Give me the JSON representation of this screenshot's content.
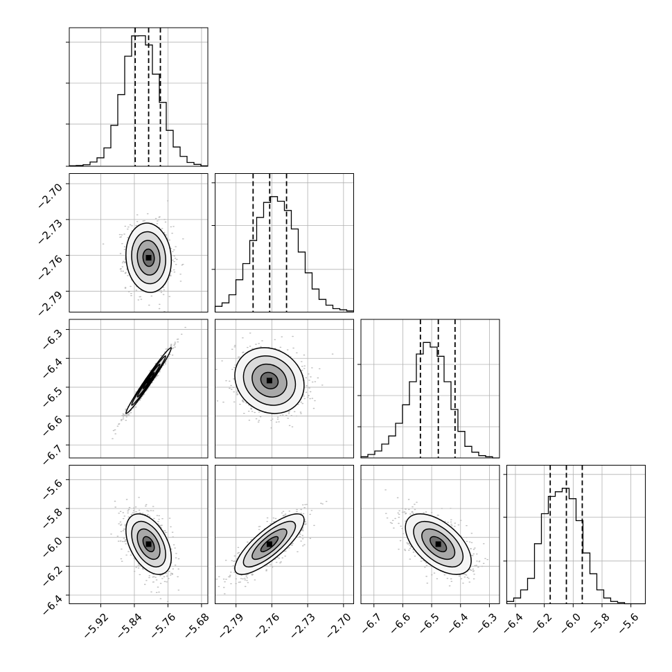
{
  "chart_data": {
    "type": "corner",
    "grid": true,
    "quantile_style": "dashed",
    "parameters": [
      {
        "range": [
          -5.995,
          -5.665
        ],
        "ticks": [
          "−5.92",
          "−5.84",
          "−5.76",
          "−5.68"
        ],
        "tick_values": [
          -5.92,
          -5.84,
          -5.76,
          -5.68
        ],
        "quantiles": [
          -5.838,
          -5.806,
          -5.778
        ],
        "histogram": {
          "bin_start": -5.995,
          "bin_width": 0.0165,
          "counts": [
            0.4,
            0.6,
            1.2,
            3.2,
            6.4,
            13.9,
            31.0,
            54.3,
            83.4,
            98.8,
            98.9,
            91.9,
            69.8,
            48.4,
            27.2,
            14.6,
            7.5,
            2.9,
            1.4,
            0.3
          ]
        },
        "hist_grid": [
          0,
          32,
          63,
          94
        ]
      },
      {
        "range": [
          -2.8075,
          -2.6915
        ],
        "ticks": [
          "−2.79",
          "−2.76",
          "−2.73",
          "−2.70"
        ],
        "tick_values": [
          -2.79,
          -2.76,
          -2.73,
          -2.7
        ],
        "quantiles": [
          -2.7757,
          -2.7618,
          -2.7477
        ],
        "histogram": {
          "bin_start": -2.8075,
          "bin_width": 0.0058,
          "counts": [
            0.05,
            0.08,
            0.15,
            0.28,
            0.42,
            0.62,
            0.82,
            0.95,
            1.0,
            0.96,
            0.88,
            0.72,
            0.52,
            0.34,
            0.2,
            0.11,
            0.06,
            0.03,
            0.02,
            0.01
          ]
        },
        "hist_grid": [
          0.37,
          0.75,
          1.12
        ]
      },
      {
        "range": [
          -6.745,
          -6.265
        ],
        "ticks": [
          "−6.7",
          "−6.6",
          "−6.5",
          "−6.4",
          "−6.3"
        ],
        "tick_values": [
          -6.7,
          -6.6,
          -6.5,
          -6.4,
          -6.3
        ],
        "quantiles": [
          -6.539,
          -6.477,
          -6.419
        ],
        "histogram": {
          "bin_start": -6.745,
          "bin_width": 0.024,
          "counts": [
            0.01,
            0.03,
            0.06,
            0.12,
            0.19,
            0.3,
            0.46,
            0.66,
            0.9,
            1.0,
            0.96,
            0.88,
            0.66,
            0.42,
            0.23,
            0.1,
            0.05,
            0.02,
            0.01,
            0.0
          ]
        },
        "hist_grid": [
          0.27,
          0.54,
          0.81
        ]
      },
      {
        "range": [
          -6.46,
          -5.5
        ],
        "ticks": [
          "−6.4",
          "−6.2",
          "−6.0",
          "−5.8",
          "−5.6"
        ],
        "tick_values": [
          -6.4,
          -6.2,
          -6.0,
          -5.8,
          -5.6
        ],
        "quantiles": [
          -6.159,
          -6.047,
          -5.937
        ],
        "histogram": {
          "bin_start": -6.46,
          "bin_width": 0.048,
          "counts": [
            0.02,
            0.05,
            0.12,
            0.22,
            0.52,
            0.78,
            0.93,
            0.97,
            1.0,
            0.91,
            0.72,
            0.44,
            0.26,
            0.12,
            0.05,
            0.02,
            0.01,
            0.0,
            0.0,
            0.0
          ]
        },
        "hist_grid": [
          0.37,
          0.75,
          1.12
        ]
      }
    ],
    "pairs": [
      {
        "x": 0,
        "y": 1,
        "mean": [
          -5.806,
          -2.762
        ],
        "sd": [
          0.027,
          0.0145
        ],
        "correlation": -0.08
      },
      {
        "x": 0,
        "y": 2,
        "mean": [
          -5.806,
          -6.477
        ],
        "sd": [
          0.027,
          0.057
        ],
        "correlation": 0.985
      },
      {
        "x": 1,
        "y": 2,
        "mean": [
          -2.762,
          -6.477
        ],
        "sd": [
          0.0145,
          0.057
        ],
        "correlation": -0.15
      },
      {
        "x": 0,
        "y": 3,
        "mean": [
          -5.806,
          -6.047
        ],
        "sd": [
          0.027,
          0.105
        ],
        "correlation": -0.45
      },
      {
        "x": 1,
        "y": 3,
        "mean": [
          -2.762,
          -6.047
        ],
        "sd": [
          0.0145,
          0.105
        ],
        "correlation": 0.8
      },
      {
        "x": 2,
        "y": 3,
        "mean": [
          -6.477,
          -6.047
        ],
        "sd": [
          0.057,
          0.105
        ],
        "correlation": -0.55
      }
    ]
  }
}
